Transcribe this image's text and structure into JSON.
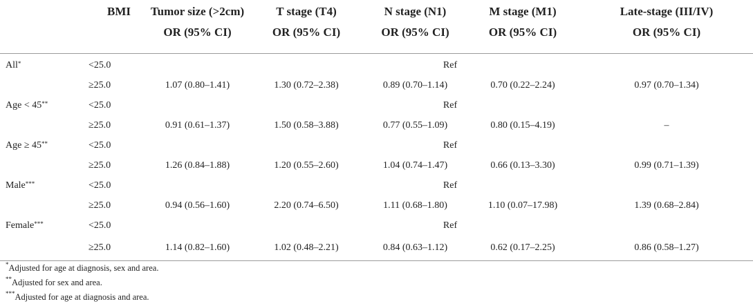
{
  "header": {
    "bmi": "BMI",
    "columns": [
      {
        "line1": "Tumor size (>2cm)",
        "line2": "OR (95% CI)"
      },
      {
        "line1": "T stage (T4)",
        "line2": "OR (95% CI)"
      },
      {
        "line1": "N stage (N1)",
        "line2": "OR (95% CI)"
      },
      {
        "line1": "M stage (M1)",
        "line2": "OR (95% CI)"
      },
      {
        "line1": "Late-stage (III/IV)",
        "line2": "OR (95% CI)"
      }
    ]
  },
  "groups": [
    {
      "label": "All",
      "mark": "*",
      "ref_bmi": "<25.0",
      "ref_text": "Ref",
      "bmi": "≥25.0",
      "values": [
        "1.07 (0.80–1.41)",
        "1.30 (0.72–2.38)",
        "0.89 (0.70–1.14)",
        "0.70 (0.22–2.24)",
        "0.97 (0.70–1.34)"
      ]
    },
    {
      "label": "Age < 45",
      "mark": "**",
      "ref_bmi": "<25.0",
      "ref_text": "Ref",
      "bmi": "≥25.0",
      "values": [
        "0.91 (0.61–1.37)",
        "1.50 (0.58–3.88)",
        "0.77 (0.55–1.09)",
        "0.80 (0.15–4.19)",
        "–"
      ]
    },
    {
      "label": "Age ≥ 45",
      "mark": "**",
      "ref_bmi": "<25.0",
      "ref_text": "Ref",
      "bmi": "≥25.0",
      "values": [
        "1.26 (0.84–1.88)",
        "1.20 (0.55–2.60)",
        "1.04 (0.74–1.47)",
        "0.66 (0.13–3.30)",
        "0.99 (0.71–1.39)"
      ]
    },
    {
      "label": "Male",
      "mark": "***",
      "ref_bmi": "<25.0",
      "ref_text": "Ref",
      "bmi": "≥25.0",
      "values": [
        "0.94 (0.56–1.60)",
        "2.20 (0.74–6.50)",
        "1.11 (0.68–1.80)",
        "1.10 (0.07–17.98)",
        "1.39 (0.68–2.84)"
      ]
    },
    {
      "label": "Female",
      "mark": "***",
      "ref_bmi": "<25.0",
      "ref_text": "Ref",
      "bmi": "≥25.0",
      "values": [
        "1.14 (0.82–1.60)",
        "1.02 (0.48–2.21)",
        "0.84 (0.63–1.12)",
        "0.62 (0.17–2.25)",
        "0.86 (0.58–1.27)"
      ]
    }
  ],
  "footnotes": [
    {
      "mark": "*",
      "text": "Adjusted for age at diagnosis, sex and area."
    },
    {
      "mark": "**",
      "text": "Adjusted for sex and area."
    },
    {
      "mark": "***",
      "text": "Adjusted for age at diagnosis and area."
    }
  ]
}
